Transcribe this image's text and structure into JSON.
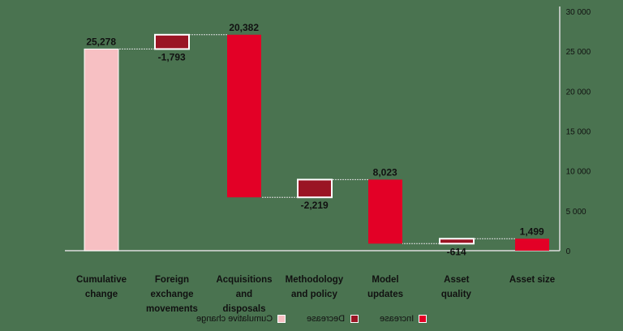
{
  "chart_data": {
    "type": "waterfall",
    "title": "",
    "xlabel": "",
    "ylabel": "",
    "ylim": [
      0,
      30000
    ],
    "yticks": [
      0,
      5000,
      10000,
      15000,
      20000,
      25000,
      30000
    ],
    "ytick_labels": [
      "0",
      "5 000",
      "10 000",
      "15 000",
      "20 000",
      "25 000",
      "30 000"
    ],
    "grid": false,
    "legend_position": "bottom",
    "mirrored_horizontally": true,
    "categories": [
      "Asset size",
      "Asset quality",
      "Model updates",
      "Methodology and policy",
      "Acquisitions and disposals",
      "Foreign exchange movements",
      "Cumulative change"
    ],
    "values": [
      1499,
      -614,
      8023,
      -2219,
      20382,
      -1793,
      25278
    ],
    "value_labels": [
      "1,499",
      "-614",
      "8,023",
      "-2,219",
      "20,382",
      "-1,793",
      "25,278"
    ],
    "kinds": [
      "increase",
      "decrease",
      "increase",
      "decrease",
      "increase",
      "decrease",
      "total"
    ],
    "legend": [
      "Increase",
      "Decrease",
      "Cumulative change"
    ],
    "colors": {
      "increase": "#e30026",
      "decrease": "#9a1524",
      "total": "#f7c0c3",
      "background": "#4a7350"
    }
  },
  "legend": {
    "items": [
      {
        "label": "Increase",
        "color": "#e30026"
      },
      {
        "label": "Decrease",
        "color": "#9a1524"
      },
      {
        "label": "Cumulative change",
        "color": "#f7c0c3"
      }
    ]
  }
}
